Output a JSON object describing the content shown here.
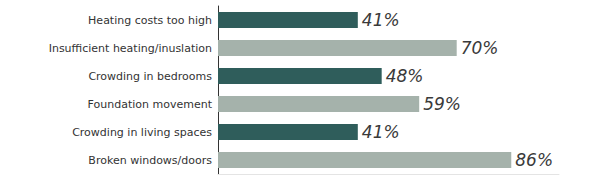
{
  "chart_data": {
    "type": "bar",
    "orientation": "horizontal",
    "categories": [
      "Heating costs too high",
      "Insufficient heating/inuslation",
      "Crowding in bedrooms",
      "Foundation movement",
      "Crowding in living spaces",
      "Broken windows/doors"
    ],
    "values": [
      41,
      70,
      48,
      59,
      41,
      86
    ],
    "value_labels": [
      "41%",
      "70%",
      "48%",
      "59%",
      "41%",
      "86%"
    ],
    "colors": [
      "#2f5d5b",
      "#a5b2ab",
      "#2f5d5b",
      "#a5b2ab",
      "#2f5d5b",
      "#a5b2ab"
    ],
    "xlim": [
      0,
      100
    ],
    "data_labels": true,
    "tick_labels": "y",
    "grid": false
  }
}
